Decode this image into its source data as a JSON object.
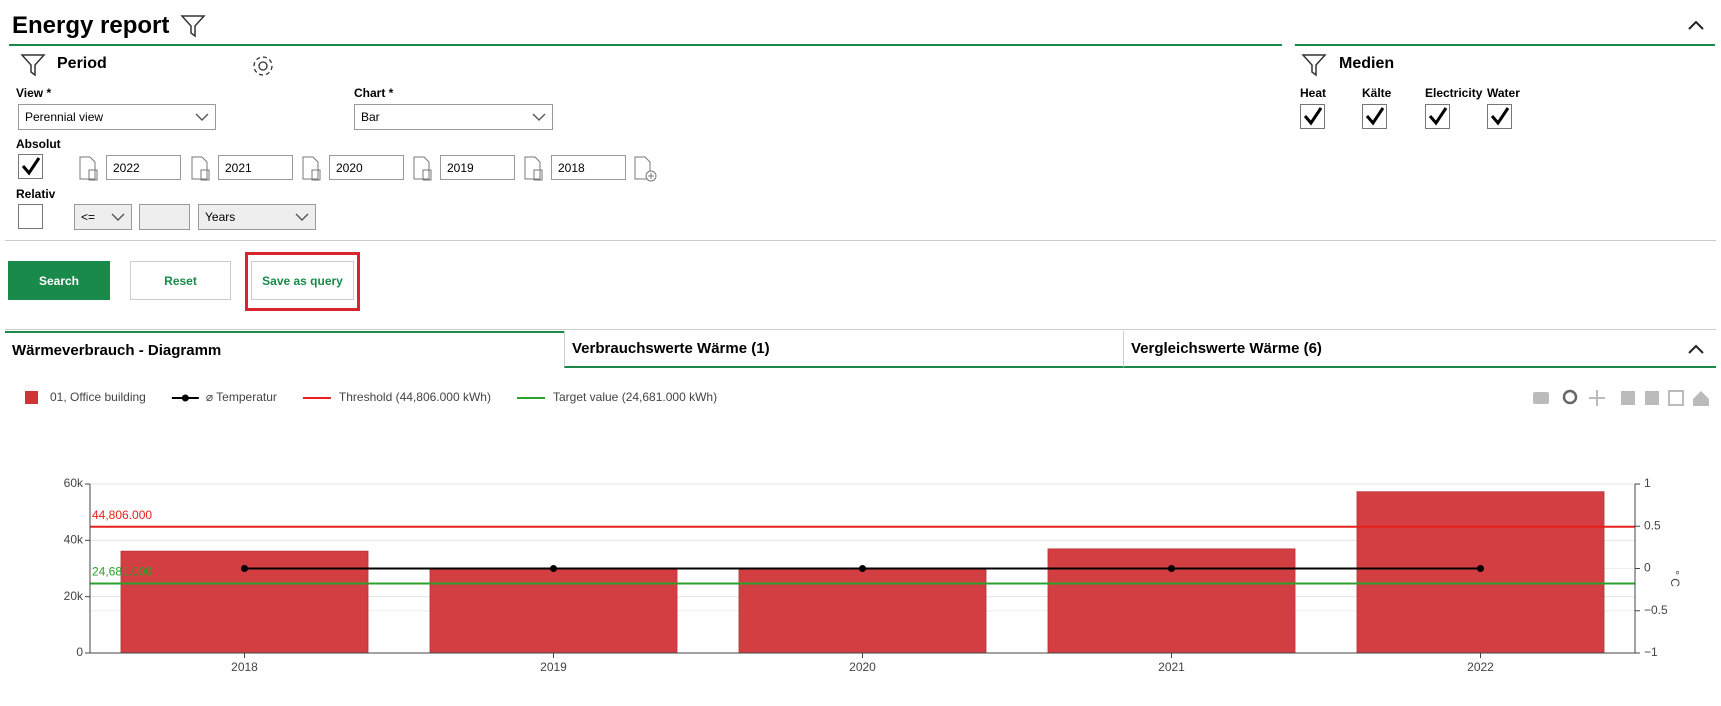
{
  "header": {
    "title": "Energy report"
  },
  "period": {
    "title": "Period",
    "view": {
      "label": "View *",
      "value": "Perennial view"
    },
    "chart": {
      "label": "Chart *",
      "value": "Bar"
    },
    "absolut": {
      "label": "Absolut",
      "checked": true,
      "years": [
        "2022",
        "2021",
        "2020",
        "2019",
        "2018"
      ]
    },
    "relativ": {
      "label": "Relativ",
      "checked": false,
      "operator": "<=",
      "unit": "Years"
    }
  },
  "medien": {
    "title": "Medien",
    "items": [
      {
        "label": "Heat",
        "checked": true
      },
      {
        "label": "Kälte",
        "checked": true
      },
      {
        "label": "Electricity",
        "checked": true
      },
      {
        "label": "Water",
        "checked": true
      }
    ]
  },
  "buttons": [
    "Search",
    "Reset",
    "Save as query"
  ],
  "tabs": [
    "Wärmeverbrauch - Diagramm",
    "Verbrauchswerte Wärme (1)",
    "Vergleichswerte Wärme (6)"
  ],
  "chart_data": {
    "type": "bar",
    "categories": [
      "2018",
      "2019",
      "2020",
      "2021",
      "2022"
    ],
    "series": [
      {
        "name": "01, Office building",
        "color": "#d13438",
        "values": [
          36200,
          30000,
          30000,
          37000,
          57300
        ]
      },
      {
        "name": "⌀ Temperatur",
        "color": "#000000",
        "type": "line",
        "axis": "y2",
        "values": [
          0,
          0,
          0,
          0,
          0
        ]
      }
    ],
    "lines": [
      {
        "name": "Threshold (44,806.000 kWh)",
        "color": "#e8201c",
        "value": 44806,
        "label": "44,806.000"
      },
      {
        "name": "Target value (24,681.000 kWh)",
        "color": "#2ca02c",
        "value": 24681,
        "label": "24,681.000"
      }
    ],
    "ylim": [
      0,
      60000
    ],
    "yticks": [
      0,
      {
        "value": 20000,
        "label": "20k"
      },
      {
        "value": 40000,
        "label": "40k"
      },
      {
        "value": 60000,
        "label": "60k"
      }
    ],
    "y2lim": [
      -1,
      1
    ],
    "y2ticks": [
      {
        "value": -1,
        "label": "−1"
      },
      {
        "value": -0.5,
        "label": "−0.5"
      },
      0,
      0.5,
      1
    ],
    "y2label": "° C",
    "grid": true
  }
}
